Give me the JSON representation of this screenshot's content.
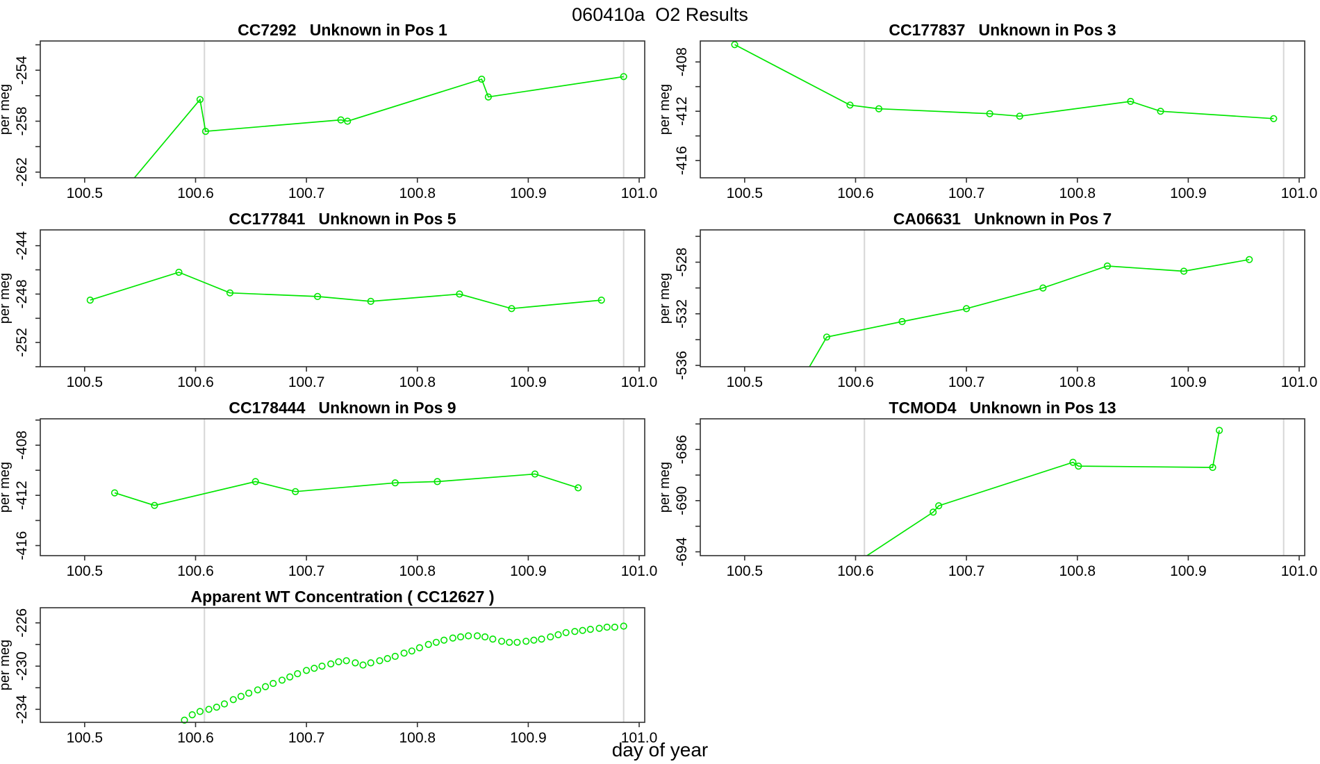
{
  "page_title": "060410a  O2 Results",
  "xlabel": "day of year",
  "colors": {
    "series": "#00e600",
    "grid": "#d6d6d6",
    "axis": "#303030",
    "text": "#000000",
    "background": "#ffffff"
  },
  "x_axis": {
    "lim": [
      100.46,
      101.005
    ],
    "ticks": [
      100.5,
      100.6,
      100.7,
      100.8,
      100.9,
      101.0
    ],
    "tick_labels": [
      "100.5",
      "100.6",
      "100.7",
      "100.8",
      "100.9",
      "101.0"
    ]
  },
  "vlines": [
    100.608,
    100.986
  ],
  "chart_data": [
    {
      "id": "CC7292",
      "row": 0,
      "col": 0,
      "type": "line",
      "title": "CC7292   Unknown in Pos 1",
      "ylabel": "per meg",
      "ylim": [
        -262.45,
        -251.7
      ],
      "yticks": [
        -262,
        -260,
        -258,
        -256,
        -254,
        -252
      ],
      "ytick_labeled": [
        -262,
        -258,
        -254
      ],
      "prefix": [
        [
          100.528,
          -264.2
        ]
      ],
      "x": [
        100.604,
        100.609,
        100.731,
        100.737,
        100.858,
        100.864,
        100.986
      ],
      "y": [
        -256.3,
        -258.8,
        -257.9,
        -258.0,
        -254.7,
        -256.1,
        -254.5
      ]
    },
    {
      "id": "CC177837",
      "row": 0,
      "col": 1,
      "type": "line",
      "title": "CC177837   Unknown in Pos 3",
      "ylabel": "per meg",
      "ylim": [
        -417.4,
        -406.3
      ],
      "yticks": [
        -416,
        -414,
        -412,
        -410,
        -408
      ],
      "ytick_labeled": [
        -416,
        -412,
        -408
      ],
      "x": [
        100.491,
        100.595,
        100.621,
        100.721,
        100.748,
        100.848,
        100.875,
        100.977
      ],
      "y": [
        -406.6,
        -411.5,
        -411.8,
        -412.2,
        -412.4,
        -411.2,
        -412.0,
        -412.6
      ]
    },
    {
      "id": "CC177841",
      "row": 1,
      "col": 0,
      "type": "line",
      "title": "CC177841   Unknown in Pos 5",
      "ylabel": "per meg",
      "ylim": [
        -254.0,
        -242.7
      ],
      "yticks": [
        -254,
        -252,
        -250,
        -248,
        -246,
        -244
      ],
      "ytick_labeled": [
        -252,
        -248,
        -244
      ],
      "x": [
        100.505,
        100.585,
        100.631,
        100.71,
        100.758,
        100.838,
        100.885,
        100.966
      ],
      "y": [
        -248.5,
        -246.2,
        -247.9,
        -248.2,
        -248.6,
        -248.0,
        -249.2,
        -248.5
      ]
    },
    {
      "id": "CA06631",
      "row": 1,
      "col": 1,
      "type": "line",
      "title": "CA06631   Unknown in Pos 7",
      "ylabel": "per meg",
      "ylim": [
        -536.1,
        -525.5
      ],
      "yticks": [
        -536,
        -534,
        -532,
        -530,
        -528,
        -526
      ],
      "ytick_labeled": [
        -536,
        -532,
        -528
      ],
      "prefix": [
        [
          100.549,
          -537.5
        ]
      ],
      "x": [
        100.574,
        100.642,
        100.7,
        100.769,
        100.827,
        100.896,
        100.955
      ],
      "y": [
        -533.8,
        -532.6,
        -531.6,
        -530.0,
        -528.3,
        -528.7,
        -527.8
      ]
    },
    {
      "id": "CC178444",
      "row": 2,
      "col": 0,
      "type": "line",
      "title": "CC178444   Unknown in Pos 9",
      "ylabel": "per meg",
      "ylim": [
        -416.8,
        -405.9
      ],
      "yticks": [
        -416,
        -414,
        -412,
        -410,
        -408,
        -406
      ],
      "ytick_labeled": [
        -416,
        -412,
        -408
      ],
      "x": [
        100.527,
        100.563,
        100.654,
        100.69,
        100.78,
        100.818,
        100.906,
        100.945
      ],
      "y": [
        -411.8,
        -412.8,
        -410.9,
        -411.7,
        -411.0,
        -410.9,
        -410.3,
        -411.4
      ]
    },
    {
      "id": "TCMOD4",
      "row": 2,
      "col": 1,
      "type": "line",
      "title": "TCMOD4   Unknown in Pos 13",
      "ylabel": "per meg",
      "ylim": [
        -694.3,
        -683.6
      ],
      "yticks": [
        -694,
        -692,
        -690,
        -688,
        -686,
        -684
      ],
      "ytick_labeled": [
        -694,
        -690,
        -686
      ],
      "prefix": [
        [
          100.598,
          -695.0
        ]
      ],
      "x": [
        100.67,
        100.675,
        100.796,
        100.801,
        100.922,
        100.928
      ],
      "y": [
        -690.9,
        -690.4,
        -687.0,
        -687.3,
        -687.4,
        -684.5
      ]
    },
    {
      "id": "CC12627",
      "row": 3,
      "col": 0,
      "type": "scatter",
      "title": "Apparent WT Concentration ( CC12627 )",
      "ylabel": "per meg",
      "ylim": [
        -235.2,
        -224.6
      ],
      "yticks": [
        -234,
        -232,
        -230,
        -228,
        -226
      ],
      "ytick_labeled": [
        -234,
        -230,
        -226
      ],
      "x": [
        100.59,
        100.597,
        100.604,
        100.612,
        100.619,
        100.626,
        100.634,
        100.641,
        100.648,
        100.656,
        100.663,
        100.67,
        100.678,
        100.685,
        100.692,
        100.7,
        100.707,
        100.714,
        100.722,
        100.729,
        100.736,
        100.744,
        100.751,
        100.758,
        100.766,
        100.773,
        100.78,
        100.788,
        100.795,
        100.802,
        100.81,
        100.817,
        100.824,
        100.832,
        100.839,
        100.846,
        100.854,
        100.861,
        100.868,
        100.876,
        100.883,
        100.89,
        100.898,
        100.905,
        100.912,
        100.92,
        100.927,
        100.934,
        100.942,
        100.949,
        100.956,
        100.964,
        100.971,
        100.978,
        100.986
      ],
      "y": [
        -235.0,
        -234.5,
        -234.2,
        -234.0,
        -233.8,
        -233.5,
        -233.1,
        -232.8,
        -232.5,
        -232.2,
        -231.9,
        -231.6,
        -231.3,
        -231.0,
        -230.7,
        -230.4,
        -230.2,
        -230.0,
        -229.8,
        -229.6,
        -229.5,
        -229.7,
        -229.9,
        -229.7,
        -229.5,
        -229.3,
        -229.1,
        -228.8,
        -228.6,
        -228.3,
        -228.0,
        -227.8,
        -227.6,
        -227.4,
        -227.3,
        -227.2,
        -227.2,
        -227.3,
        -227.5,
        -227.7,
        -227.8,
        -227.8,
        -227.7,
        -227.6,
        -227.5,
        -227.3,
        -227.1,
        -226.9,
        -226.8,
        -226.7,
        -226.6,
        -226.5,
        -226.4,
        -226.4,
        -226.3
      ]
    }
  ]
}
